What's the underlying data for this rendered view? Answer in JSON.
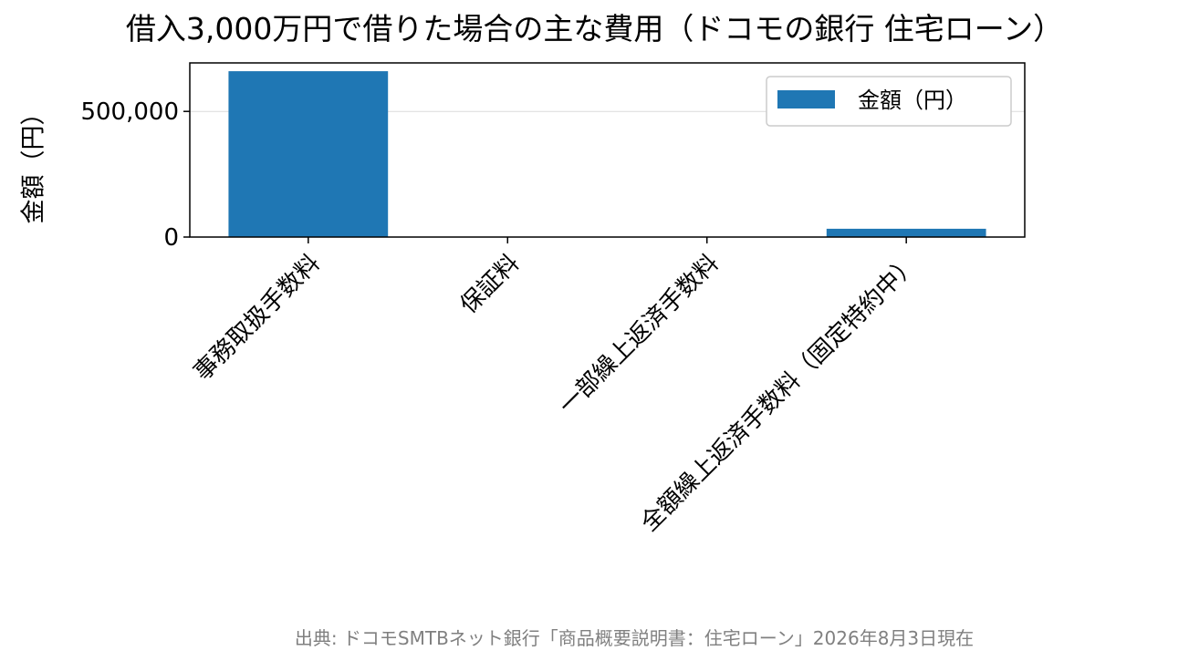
{
  "chart_data": {
    "type": "bar",
    "title": "借入3,000万円で借りた場合の主な費用（ドコモの銀行 住宅ローン）",
    "xlabel": "",
    "ylabel": "金額（円）",
    "categories": [
      "事務取扱手数料",
      "保証料",
      "一部繰上返済手数料",
      "全額繰上返済手数料（固定特約中）"
    ],
    "series": [
      {
        "name": "金額（円）",
        "values": [
          660000,
          0,
          0,
          33000
        ],
        "color": "#1f77b4"
      }
    ],
    "yticks": [
      0,
      500000
    ],
    "ytick_labels": [
      "0",
      "500,000"
    ],
    "ylim": [
      0,
      693000
    ],
    "grid": "y",
    "legend_position": "top-right"
  },
  "source_note": "出典: ドコモSMTBネット銀行「商品概要説明書：住宅ローン」2026年8月3日現在"
}
